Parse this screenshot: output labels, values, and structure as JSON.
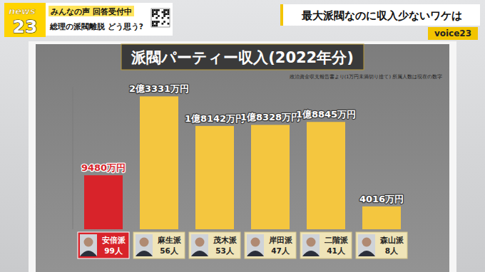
{
  "header": {
    "logo": [
      "news",
      "23"
    ],
    "prompt": "みんなの声 回答受付中",
    "question": "総理の派閥離脱 どう思う?",
    "headline": "最大派閥なのに収入少ないワケは",
    "corner": "voice23"
  },
  "chart_data": {
    "type": "bar",
    "title": "派閥パーティー収入(2022年分)",
    "note": "政治資金収支報告書より(1万円未満切り捨て) 所属人数は現在の数字",
    "categories": [
      "安倍派",
      "麻生派",
      "茂木派",
      "岸田派",
      "二階派",
      "森山派"
    ],
    "members": [
      "99人",
      "56人",
      "53人",
      "47人",
      "41人",
      "8人"
    ],
    "values": [
      9480,
      23331,
      18142,
      18328,
      18845,
      4016
    ],
    "value_labels": [
      "9480万円",
      "2億3331万円",
      "1億8142万円",
      "1億8328万円",
      "1億8845万円",
      "4016万円"
    ],
    "colors": [
      "#d8232a",
      "#f4c63f",
      "#f4c63f",
      "#f4c63f",
      "#f4c63f",
      "#f4c63f"
    ],
    "ylim": [
      0,
      25000
    ],
    "data_labels": true,
    "tick_labels": false
  }
}
